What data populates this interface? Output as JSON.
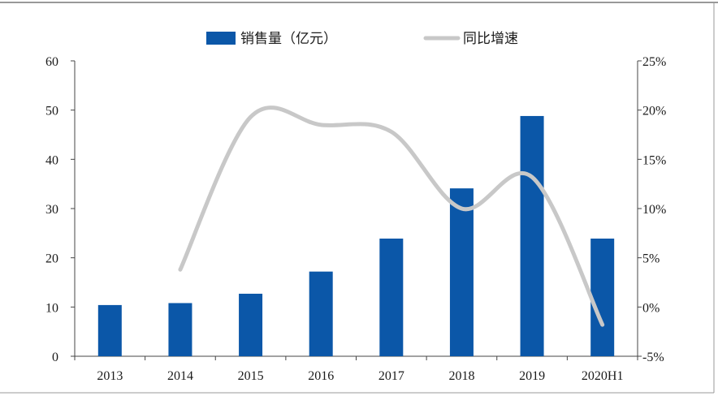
{
  "chart_data": {
    "type": "bar+line",
    "categories": [
      "2013",
      "2014",
      "2015",
      "2016",
      "2017",
      "2018",
      "2019",
      "2020H1"
    ],
    "series": [
      {
        "name": "销售量（亿元）",
        "type": "bar",
        "axis": "left",
        "color": "#0b57a8",
        "values": [
          10.4,
          10.8,
          12.7,
          17.2,
          23.9,
          34.1,
          48.8,
          23.9
        ]
      },
      {
        "name": "同比增速",
        "type": "line",
        "axis": "right",
        "color": "#c8c8c8",
        "values": [
          null,
          3.8,
          19.3,
          18.5,
          17.8,
          10.0,
          13.2,
          -1.8
        ]
      }
    ],
    "left_axis": {
      "ylim": [
        0,
        60
      ],
      "ticks": [
        "0",
        "10",
        "20",
        "30",
        "40",
        "50",
        "60"
      ]
    },
    "right_axis": {
      "ylim": [
        -5,
        25
      ],
      "ticks": [
        "-5%",
        "0%",
        "5%",
        "10%",
        "15%",
        "20%",
        "25%"
      ]
    },
    "legend_position": "top-center",
    "grid": false
  }
}
